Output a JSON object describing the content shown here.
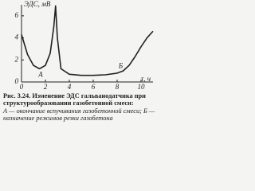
{
  "chart_data": {
    "type": "line",
    "ylabel": "ЭДС, мВ",
    "xlabel": "τ, ч",
    "x": [
      0,
      0.5,
      1,
      1.5,
      2,
      2.4,
      2.7,
      2.85,
      3,
      3.3,
      4,
      5,
      6,
      7,
      8,
      8.5,
      9,
      9.5,
      10,
      10.5,
      11
    ],
    "series": [
      {
        "color": "#222222",
        "values": [
          4.3,
          2.5,
          1.5,
          1.2,
          1.5,
          2.6,
          5,
          6.9,
          4,
          1.2,
          0.7,
          0.6,
          0.6,
          0.65,
          0.8,
          1,
          1.5,
          2.3,
          3.2,
          4,
          4.6
        ]
      }
    ],
    "xlim": [
      0,
      11
    ],
    "ylim": [
      0,
      7
    ],
    "xticks": [
      0,
      2,
      4,
      6,
      8,
      10
    ],
    "yticks": [
      0,
      2,
      4,
      6
    ],
    "annotations": [
      {
        "text": "А",
        "x": 1.6,
        "y": 0.6
      },
      {
        "text": "Б",
        "x": 8.3,
        "y": 1.4
      }
    ],
    "caption_title": "Рис. 3.24. Изменение ЭДС гальванодатчика при структурообразовании газобетонной смеси:",
    "caption_legend": "А — окончание вспучивания газобетонной смеси; Б — назначение режимов резки газобетона"
  }
}
